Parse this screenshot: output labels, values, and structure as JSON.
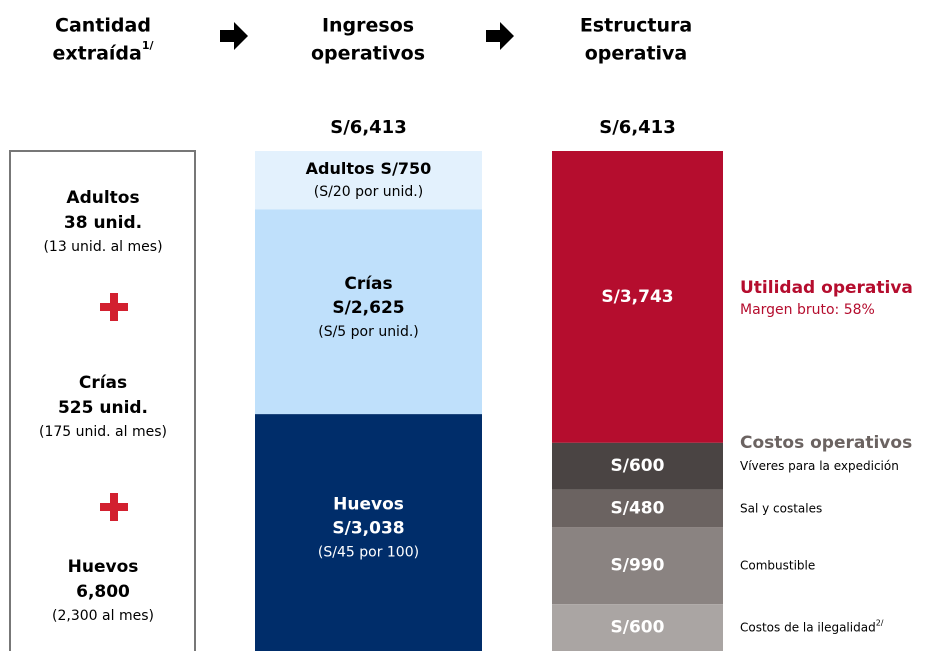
{
  "columns": [
    {
      "title_lines": [
        "Cantidad",
        "extraída"
      ],
      "superscript": "1/"
    },
    {
      "title_lines": [
        "Ingresos",
        "operativos"
      ]
    },
    {
      "title_lines": [
        "Estructura",
        "operativa"
      ]
    }
  ],
  "quantity": {
    "items": [
      {
        "name": "Adultos",
        "amount": "38 unid.",
        "monthly": "(13 unid. al mes)"
      },
      {
        "name": "Crías",
        "amount": "525 unid.",
        "monthly": "(175 unid. al mes)"
      },
      {
        "name": "Huevos",
        "amount": "6,800",
        "monthly": "(2,300 al mes)"
      }
    ]
  },
  "revenue": {
    "total": 6413,
    "total_label": "S/6,413",
    "segments": [
      {
        "name": "Adultos",
        "value": 750,
        "value_label": "S/750",
        "note": "(S/20 por unid.)",
        "color": "#e3f1fd",
        "text_color": "#000000"
      },
      {
        "name": "Crías",
        "value": 2625,
        "value_label": "S/2,625",
        "note": "(S/5 por unid.)",
        "color": "#bfe0fb",
        "text_color": "#000000"
      },
      {
        "name": "Huevos",
        "value": 3038,
        "value_label": "S/3,038",
        "note": "(S/45 por 100)",
        "color": "#002d6a",
        "text_color": "#ffffff"
      }
    ]
  },
  "structure": {
    "total": 6413,
    "total_label": "S/6,413",
    "profit": {
      "title": "Utilidad operativa",
      "subtitle": "Margen bruto: 58%"
    },
    "costs": {
      "title": "Costos operativos"
    },
    "segments": [
      {
        "value": 3743,
        "value_label": "S/3,743",
        "color": "#b50d2e"
      },
      {
        "value": 600,
        "value_label": "S/600",
        "color": "#4a4443",
        "description": "Víveres para la expedición"
      },
      {
        "value": 480,
        "value_label": "S/480",
        "color": "#6b6361",
        "description": "Sal y costales"
      },
      {
        "value": 990,
        "value_label": "S/990",
        "color": "#8a8381",
        "description": "Combustible"
      },
      {
        "value": 600,
        "value_label": "S/600",
        "color": "#aaa5a3",
        "description": "Costos de la ilegalidad",
        "description_sup": "2/"
      }
    ]
  }
}
